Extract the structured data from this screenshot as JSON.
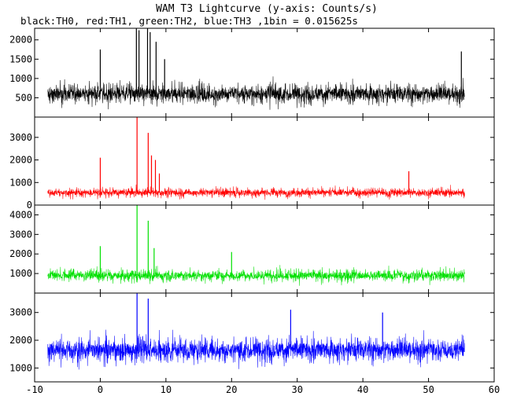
{
  "title": "WAM T3 Lightcurve (y-axis: Counts/s)",
  "subtitle": "black:TH0, red:TH1, green:TH2, blue:TH3 ,1bin = 0.015625s",
  "chart_data": {
    "type": "line",
    "title": "WAM T3 Lightcurve (y-axis: Counts/s)",
    "xlim": [
      -10,
      60
    ],
    "x_ticks": [
      -10,
      0,
      10,
      20,
      30,
      40,
      50,
      60
    ],
    "x_tick_labels": [
      "-10",
      "0",
      "10",
      "20",
      "30",
      "40",
      "50",
      "60"
    ],
    "x_range_of_data": [
      -8,
      55.5
    ],
    "bin_size_s": 0.015625,
    "panels": [
      {
        "name": "TH0",
        "color": "#000000",
        "ylim": [
          0,
          2300
        ],
        "y_ticks": [
          500,
          1000,
          1500,
          2000
        ],
        "y_tick_labels": [
          "500",
          "1000",
          "1500",
          "2000"
        ],
        "baseline": 600,
        "noise": 220,
        "spikes": [
          {
            "x": 0.0,
            "y": 1750
          },
          {
            "x": 5.5,
            "y": 2300
          },
          {
            "x": 5.9,
            "y": 2250
          },
          {
            "x": 7.2,
            "y": 2300
          },
          {
            "x": 7.6,
            "y": 2200
          },
          {
            "x": 8.5,
            "y": 1950
          },
          {
            "x": 9.8,
            "y": 1500
          },
          {
            "x": 55.0,
            "y": 1700
          }
        ]
      },
      {
        "name": "TH1",
        "color": "#ff0000",
        "ylim": [
          0,
          3900
        ],
        "y_ticks": [
          0,
          1000,
          2000,
          3000
        ],
        "y_tick_labels": [
          "0",
          "1000",
          "2000",
          "3000"
        ],
        "baseline": 550,
        "noise": 170,
        "spikes": [
          {
            "x": 0.0,
            "y": 2100
          },
          {
            "x": 5.6,
            "y": 3900
          },
          {
            "x": 7.3,
            "y": 3200
          },
          {
            "x": 7.8,
            "y": 2200
          },
          {
            "x": 8.4,
            "y": 2000
          },
          {
            "x": 9.0,
            "y": 1400
          },
          {
            "x": 47.0,
            "y": 1500
          }
        ]
      },
      {
        "name": "TH2",
        "color": "#00e000",
        "ylim": [
          0,
          4500
        ],
        "y_ticks": [
          1000,
          2000,
          3000,
          4000
        ],
        "y_tick_labels": [
          "1000",
          "2000",
          "3000",
          "4000"
        ],
        "baseline": 900,
        "noise": 260,
        "spikes": [
          {
            "x": 0.0,
            "y": 2400
          },
          {
            "x": 5.6,
            "y": 4500
          },
          {
            "x": 7.3,
            "y": 3700
          },
          {
            "x": 8.2,
            "y": 2300
          },
          {
            "x": 20.0,
            "y": 2100
          }
        ]
      },
      {
        "name": "TH3",
        "color": "#0000ff",
        "ylim": [
          500,
          3700
        ],
        "y_ticks": [
          1000,
          2000,
          3000
        ],
        "y_tick_labels": [
          "1000",
          "2000",
          "3000"
        ],
        "baseline": 1650,
        "noise": 380,
        "spikes": [
          {
            "x": 5.6,
            "y": 3700
          },
          {
            "x": 7.3,
            "y": 3500
          },
          {
            "x": 29.0,
            "y": 3100
          },
          {
            "x": 43.0,
            "y": 3000
          }
        ]
      }
    ]
  }
}
